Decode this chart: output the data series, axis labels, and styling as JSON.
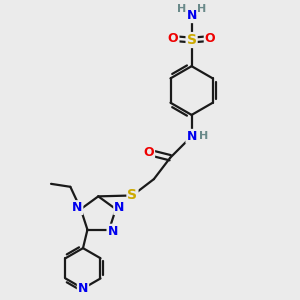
{
  "bg_color": "#ebebeb",
  "bond_color": "#1a1a1a",
  "bond_width": 1.6,
  "atom_colors": {
    "C": "#1a1a1a",
    "H": "#6a8a8a",
    "N": "#0000ee",
    "O": "#ee0000",
    "S": "#ccaa00"
  }
}
